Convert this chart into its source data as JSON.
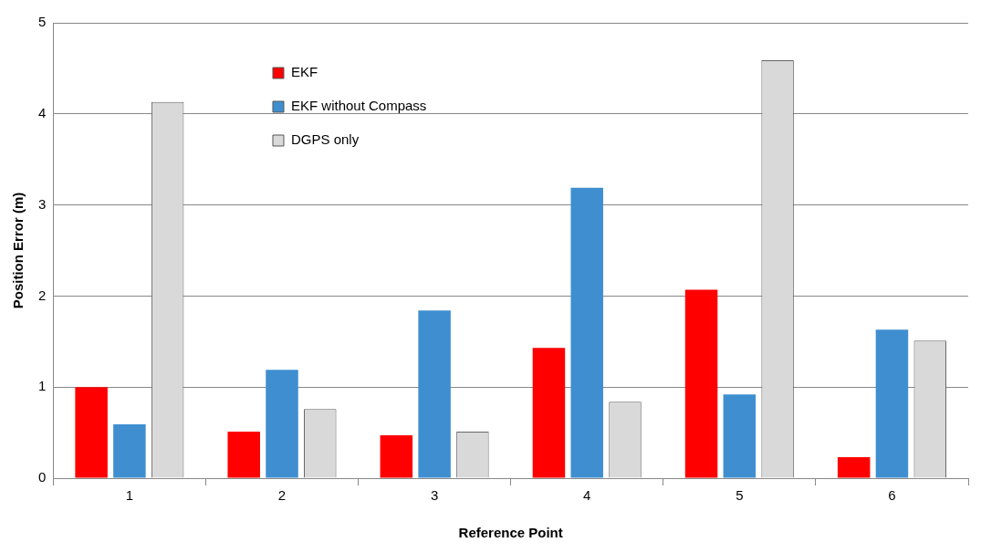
{
  "chart_data": {
    "type": "bar",
    "xlabel": "Reference Point",
    "ylabel": "Position Error (m)",
    "categories": [
      "1",
      "2",
      "3",
      "4",
      "5",
      "6"
    ],
    "series": [
      {
        "name": "EKF",
        "color": "#ff0000",
        "values": [
          1.0,
          0.51,
          0.47,
          1.43,
          2.07,
          0.23
        ]
      },
      {
        "name": "EKF without Compass",
        "color": "#3f8fd0",
        "values": [
          0.59,
          1.19,
          1.84,
          3.19,
          0.92,
          1.63
        ]
      },
      {
        "name": "DGPS only",
        "color": "#d9d9d9",
        "values": [
          4.13,
          0.76,
          0.51,
          0.84,
          4.59,
          1.51
        ]
      }
    ],
    "ylim": [
      0,
      5
    ],
    "yticks": [
      0,
      1,
      2,
      3,
      4,
      5
    ],
    "grid": "y",
    "legend": "top left"
  }
}
